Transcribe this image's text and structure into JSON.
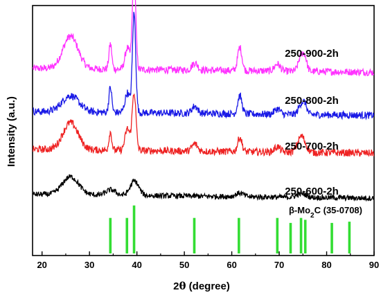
{
  "chart_data": {
    "type": "line",
    "xlabel_prefix": "2",
    "xlabel_symbol": "θ",
    "xlabel_suffix": " (degree)",
    "ylabel": "Intensity (a.u.)",
    "xlim": [
      18,
      90
    ],
    "x_ticks": [
      20,
      30,
      40,
      50,
      60,
      70,
      80,
      90
    ],
    "y_ticks_shown": false,
    "grid": false,
    "series": [
      {
        "name": "250-900-2h",
        "color": "#ff33ff",
        "baseline": 94,
        "noise": 4,
        "peaks": [
          [
            26,
            18,
            1.6
          ],
          [
            34.4,
            14,
            0.3
          ],
          [
            38,
            12,
            0.5
          ],
          [
            39.4,
            55,
            0.35
          ],
          [
            52.2,
            4,
            0.6
          ],
          [
            61.7,
            13,
            0.45
          ],
          [
            69.6,
            4,
            0.6
          ],
          [
            74.7,
            9,
            0.6
          ],
          [
            75.5,
            5,
            0.4
          ]
        ]
      },
      {
        "name": "250-800-2h",
        "color": "#1a1ae6",
        "baseline": 70,
        "noise": 4,
        "peaks": [
          [
            26,
            9,
            1.8
          ],
          [
            34.4,
            14,
            0.3
          ],
          [
            38,
            11,
            0.5
          ],
          [
            39.4,
            55,
            0.35
          ],
          [
            52.2,
            4,
            0.6
          ],
          [
            61.7,
            10,
            0.45
          ],
          [
            69.6,
            3,
            0.6
          ],
          [
            74.7,
            6,
            0.6
          ],
          [
            75.5,
            4,
            0.4
          ]
        ]
      },
      {
        "name": "250-700-2h",
        "color": "#ee2222",
        "baseline": 49,
        "noise": 4,
        "peaks": [
          [
            26,
            15,
            1.6
          ],
          [
            34.4,
            10,
            0.3
          ],
          [
            38,
            12,
            0.5
          ],
          [
            39.4,
            32,
            0.4
          ],
          [
            52.2,
            4,
            0.6
          ],
          [
            61.7,
            8,
            0.45
          ],
          [
            69.6,
            3,
            0.6
          ],
          [
            74.7,
            9,
            0.8
          ]
        ]
      },
      {
        "name": "250-600-2h",
        "color": "#000000",
        "baseline": 24,
        "noise": 3,
        "peaks": [
          [
            26,
            10,
            1.7
          ],
          [
            34.5,
            3,
            1.0
          ],
          [
            39.5,
            8,
            0.9
          ],
          [
            61.7,
            2,
            0.8
          ],
          [
            74.7,
            2,
            1.0
          ]
        ]
      }
    ],
    "reference": {
      "label_prefix": "β-Mo",
      "label_subscript": "2",
      "label_suffix": "C (35-0708)",
      "color": "#33dd33",
      "lines": [
        {
          "x": 34.4,
          "intensity": 0.57
        },
        {
          "x": 37.9,
          "intensity": 0.57
        },
        {
          "x": 39.4,
          "intensity": 0.77
        },
        {
          "x": 52.1,
          "intensity": 0.57
        },
        {
          "x": 61.5,
          "intensity": 0.57
        },
        {
          "x": 69.6,
          "intensity": 0.57
        },
        {
          "x": 72.4,
          "intensity": 0.49
        },
        {
          "x": 74.6,
          "intensity": 0.57
        },
        {
          "x": 75.5,
          "intensity": 0.54
        },
        {
          "x": 81.1,
          "intensity": 0.49
        },
        {
          "x": 84.8,
          "intensity": 0.51
        }
      ]
    }
  }
}
